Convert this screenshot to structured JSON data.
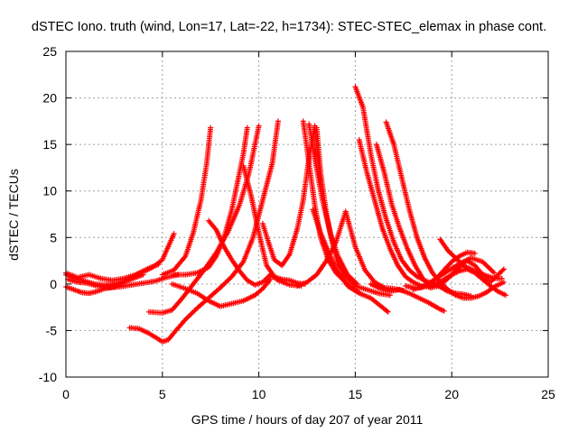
{
  "chart_data": {
    "type": "scatter",
    "title": "dSTEC Iono. truth (wind, Lon=17, Lat=-22, h=1734): STEC-STEC_elemax in phase cont.",
    "xlabel": "GPS time / hours of day 207 of year 2011",
    "ylabel": "dSTEC  / TECUs",
    "xlim": [
      0,
      25
    ],
    "ylim": [
      -10,
      25
    ],
    "xticks": [
      0,
      5,
      10,
      15,
      20,
      25
    ],
    "yticks": [
      -10,
      -5,
      0,
      5,
      10,
      15,
      20,
      25
    ],
    "grid": true,
    "marker": "+",
    "color": "#ff0000",
    "series": [
      {
        "x": [
          0.0,
          0.5,
          1.0,
          1.5,
          2.0,
          2.5,
          3.0,
          3.5,
          4.0,
          4.5,
          5.0,
          5.3,
          5.6
        ],
        "y": [
          1.0,
          0.6,
          0.3,
          0.0,
          -0.1,
          0.0,
          0.3,
          0.8,
          1.3,
          1.8,
          2.6,
          4.0,
          5.4
        ]
      },
      {
        "x": [
          0.0,
          0.6,
          1.2,
          1.8,
          2.4,
          3.0,
          3.6,
          4.0,
          4.4,
          4.8
        ],
        "y": [
          1.2,
          0.7,
          1.0,
          0.6,
          0.4,
          0.6,
          1.0,
          1.4,
          1.8,
          2.1
        ]
      },
      {
        "x": [
          0.0,
          0.4,
          0.8,
          1.2,
          1.6,
          2.0,
          2.5,
          3.0,
          3.5,
          4.0
        ],
        "y": [
          -0.3,
          -0.6,
          -0.9,
          -1.0,
          -0.8,
          -0.5,
          -0.3,
          0.2,
          0.6,
          1.0
        ]
      },
      {
        "x": [
          0.1,
          0.6,
          1.1,
          1.6,
          2.2,
          2.8,
          3.4,
          4.0,
          4.6,
          5.2,
          5.8
        ],
        "y": [
          0.5,
          0.2,
          0.1,
          -0.2,
          -0.4,
          -0.3,
          -0.1,
          0.1,
          0.3,
          0.7,
          1.0
        ]
      },
      {
        "x": [
          3.3,
          3.8,
          4.3,
          4.7,
          5.0,
          5.3,
          5.7,
          6.2,
          6.8,
          7.4,
          8.0,
          8.6,
          9.2,
          9.7,
          10.2,
          10.7,
          11.0
        ],
        "y": [
          -4.7,
          -4.8,
          -5.3,
          -5.8,
          -6.2,
          -6.0,
          -5.0,
          -3.8,
          -2.6,
          -1.5,
          -0.4,
          0.8,
          2.4,
          5.0,
          9.0,
          13.0,
          17.5
        ]
      },
      {
        "x": [
          4.3,
          5.0,
          5.5,
          6.0,
          6.6,
          7.2,
          7.8,
          8.4,
          9.0,
          9.5,
          10.0
        ],
        "y": [
          -3.0,
          -3.1,
          -2.8,
          -1.6,
          0.0,
          1.6,
          3.4,
          5.6,
          8.5,
          12.0,
          17.0
        ]
      },
      {
        "x": [
          5.0,
          5.6,
          6.2,
          6.6,
          7.0,
          7.3,
          7.5
        ],
        "y": [
          1.0,
          1.5,
          3.0,
          5.5,
          9.0,
          13.0,
          16.8
        ]
      },
      {
        "x": [
          5.6,
          6.2,
          6.8,
          7.4,
          7.8,
          8.2,
          8.6,
          8.9,
          9.2,
          9.4
        ],
        "y": [
          1.0,
          1.0,
          1.2,
          1.8,
          3.0,
          5.0,
          8.0,
          11.0,
          14.0,
          16.8
        ]
      },
      {
        "x": [
          7.4,
          7.8,
          8.2,
          8.6,
          9.0,
          9.4,
          9.8,
          10.2,
          10.6,
          11.0,
          11.6,
          12.2
        ],
        "y": [
          6.8,
          5.8,
          4.0,
          2.6,
          1.4,
          0.4,
          -0.1,
          0.2,
          1.0,
          0.4,
          -0.1,
          -0.2
        ]
      },
      {
        "x": [
          5.5,
          6.2,
          6.8,
          7.4,
          8.0,
          8.6,
          9.2,
          9.8,
          10.2,
          10.6
        ],
        "y": [
          0.0,
          -0.5,
          -1.0,
          -1.8,
          -2.4,
          -2.1,
          -1.8,
          -1.2,
          -0.5,
          0.5
        ]
      },
      {
        "x": [
          9.2,
          9.6,
          10.0,
          10.4,
          10.8,
          11.2,
          11.6,
          12.0,
          12.4
        ],
        "y": [
          12.7,
          9.5,
          5.5,
          2.0,
          0.8,
          0.5,
          0.4,
          0.1,
          0.0
        ]
      },
      {
        "x": [
          10.2,
          10.5,
          10.8,
          11.2,
          11.6,
          12.0,
          12.3,
          12.6,
          12.9,
          13.2
        ],
        "y": [
          6.5,
          4.5,
          2.6,
          2.0,
          3.2,
          6.0,
          9.0,
          13.5,
          17.0,
          10.5
        ]
      },
      {
        "x": [
          12.3,
          12.6,
          12.9,
          13.2,
          13.6,
          14.0,
          14.4,
          14.8,
          15.2
        ],
        "y": [
          17.5,
          13.0,
          8.5,
          5.0,
          2.6,
          1.2,
          0.4,
          -0.4,
          -0.9
        ]
      },
      {
        "x": [
          12.6,
          12.9,
          13.3,
          13.7,
          14.1,
          14.6,
          15.1
        ],
        "y": [
          17.2,
          13.5,
          9.0,
          5.5,
          3.0,
          1.0,
          0.0
        ]
      },
      {
        "x": [
          13.0,
          13.2,
          13.5,
          13.8,
          14.1,
          14.5,
          15.0,
          15.6,
          16.2,
          16.8
        ],
        "y": [
          16.8,
          12.0,
          7.6,
          4.5,
          2.2,
          0.8,
          -0.2,
          -0.6,
          -1.0,
          -1.2
        ]
      },
      {
        "x": [
          12.8,
          13.2,
          13.6,
          14.0,
          14.6,
          15.2,
          15.8,
          16.4,
          16.7
        ],
        "y": [
          8.0,
          5.5,
          3.5,
          1.6,
          -0.2,
          -1.0,
          -1.5,
          -2.5,
          -3.0
        ]
      },
      {
        "x": [
          12.0,
          12.5,
          13.0,
          13.5,
          14.0,
          14.5,
          15.0,
          15.5,
          16.0,
          16.5,
          17.0,
          17.5
        ],
        "y": [
          -0.2,
          0.2,
          1.0,
          2.5,
          4.5,
          7.8,
          4.0,
          1.5,
          0.2,
          -0.4,
          -0.5,
          -0.7
        ]
      },
      {
        "x": [
          15.0,
          15.4,
          15.8,
          16.2,
          16.6,
          17.0,
          17.4,
          17.8,
          18.2,
          18.6,
          19.0,
          19.4,
          19.8,
          20.2,
          20.6,
          21.0
        ],
        "y": [
          21.2,
          19.0,
          14.0,
          10.0,
          7.0,
          4.5,
          2.6,
          1.5,
          0.8,
          0.4,
          0.0,
          -0.3,
          -0.8,
          -1.0,
          -1.1,
          -1.3
        ]
      },
      {
        "x": [
          15.2,
          15.6,
          16.0,
          16.4,
          16.8,
          17.2,
          17.6,
          18.0,
          18.4,
          18.8,
          19.2,
          19.6,
          20.0,
          20.4,
          20.8,
          21.2,
          21.6,
          22.0,
          22.4,
          22.8
        ],
        "y": [
          15.5,
          12.0,
          9.0,
          6.0,
          3.8,
          2.0,
          0.8,
          0.2,
          -0.2,
          -0.3,
          0.0,
          0.5,
          1.0,
          1.4,
          1.6,
          1.2,
          0.5,
          -0.2,
          -0.8,
          -1.2
        ]
      },
      {
        "x": [
          16.1,
          16.5,
          16.9,
          17.3,
          17.7,
          18.1,
          18.5,
          18.9,
          19.3,
          19.7,
          20.1,
          20.5
        ],
        "y": [
          15.0,
          12.0,
          8.5,
          6.0,
          3.8,
          2.0,
          0.6,
          -0.4,
          -0.2,
          0.4,
          1.2,
          2.0
        ]
      },
      {
        "x": [
          16.6,
          17.0,
          17.4,
          17.8,
          18.2,
          18.6,
          19.0,
          19.4,
          19.8,
          20.2,
          20.6,
          21.0,
          21.4,
          21.8,
          22.2,
          22.7
        ],
        "y": [
          17.4,
          15.0,
          11.5,
          8.0,
          5.0,
          2.8,
          1.2,
          0.2,
          -0.6,
          -1.2,
          -1.5,
          -1.5,
          -1.3,
          -0.9,
          -0.3,
          0.2
        ]
      },
      {
        "x": [
          15.8,
          16.3,
          16.8,
          17.3,
          17.8,
          18.3,
          18.8,
          19.3,
          19.6
        ],
        "y": [
          0.0,
          -0.5,
          -0.8,
          -0.6,
          -1.0,
          -1.5,
          -2.0,
          -2.6,
          -2.9
        ]
      },
      {
        "x": [
          17.6,
          18.0,
          18.4,
          18.8,
          19.2,
          19.6,
          20.0,
          20.4,
          20.8,
          21.2
        ],
        "y": [
          -0.2,
          -0.4,
          -0.4,
          -0.1,
          0.6,
          1.5,
          2.4,
          3.0,
          3.4,
          3.3
        ]
      },
      {
        "x": [
          19.4,
          19.8,
          20.2,
          20.6,
          21.0,
          21.4,
          21.8,
          22.2,
          22.6
        ],
        "y": [
          4.8,
          3.6,
          2.8,
          2.0,
          1.6,
          1.2,
          0.9,
          0.6,
          0.6
        ]
      },
      {
        "x": [
          20.0,
          20.4,
          20.8,
          21.2,
          21.6,
          22.0,
          22.4,
          22.7
        ],
        "y": [
          1.0,
          2.0,
          2.5,
          2.0,
          1.0,
          0.2,
          1.0,
          1.6
        ]
      },
      {
        "x": [
          18.0,
          18.6,
          19.2,
          19.8,
          20.4,
          21.0,
          21.6,
          22.2
        ],
        "y": [
          -0.6,
          -0.2,
          0.6,
          1.4,
          2.2,
          2.8,
          2.4,
          1.2
        ]
      }
    ]
  }
}
